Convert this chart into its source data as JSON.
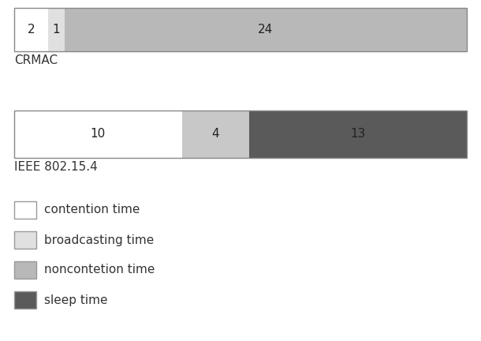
{
  "bar1": {
    "label": "CRMAC",
    "segments": [
      {
        "value": 2,
        "label": "2",
        "color": "#ffffff",
        "edgecolor": "#999999"
      },
      {
        "value": 1,
        "label": "1",
        "color": "#e0e0e0",
        "edgecolor": "#999999"
      },
      {
        "value": 24,
        "label": "24",
        "color": "#b8b8b8",
        "edgecolor": "#999999"
      }
    ]
  },
  "bar2": {
    "label": "IEEE 802.15.4",
    "segments": [
      {
        "value": 10,
        "label": "10",
        "color": "#ffffff",
        "edgecolor": "#999999"
      },
      {
        "value": 4,
        "label": "4",
        "color": "#c8c8c8",
        "edgecolor": "#999999"
      },
      {
        "value": 13,
        "label": "13",
        "color": "#5a5a5a",
        "edgecolor": "#999999"
      }
    ]
  },
  "legend": [
    {
      "label": "contention time",
      "color": "#ffffff",
      "edgecolor": "#999999"
    },
    {
      "label": "broadcasting time",
      "color": "#e0e0e0",
      "edgecolor": "#999999"
    },
    {
      "label": "noncontetion time",
      "color": "#b8b8b8",
      "edgecolor": "#999999"
    },
    {
      "label": "sleep time",
      "color": "#5a5a5a",
      "edgecolor": "#999999"
    }
  ],
  "bar_label_fontsize": 11,
  "label_fontsize": 11,
  "legend_fontsize": 11,
  "background_color": "#ffffff",
  "text_color": "#333333"
}
